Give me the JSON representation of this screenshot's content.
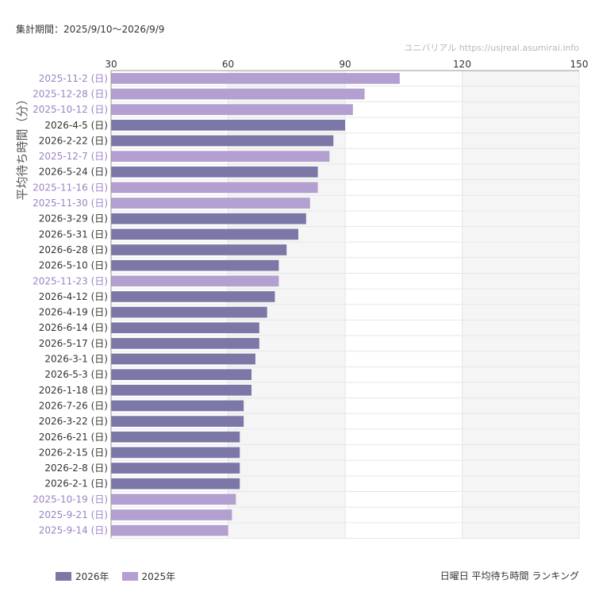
{
  "header": {
    "period": "集計期間：2025/9/10～2026/9/9",
    "watermark": "ユニバリアル  https://usjreal.asumirai.info"
  },
  "footer": {
    "caption": "日曜日 平均待ち時間 ランキング"
  },
  "colors": {
    "series_2026": "#7b77a6",
    "series_2025": "#b39fd0",
    "label_2026": "#333333",
    "label_2025": "#9b83c4",
    "band": "#f5f5f5",
    "grid": "#e6e6e6"
  },
  "chart_data": {
    "type": "bar",
    "orientation": "horizontal",
    "ylabel": "平均待ち時間（分）",
    "xlim": [
      30,
      150
    ],
    "xticks": [
      30,
      60,
      90,
      120,
      150
    ],
    "grid": true,
    "legend_position": "bottom-left",
    "series": [
      {
        "name": "2026年",
        "color": "#7b77a6"
      },
      {
        "name": "2025年",
        "color": "#b39fd0"
      }
    ],
    "bars": [
      {
        "label": "2025-11-2 (日)",
        "value": 104,
        "series": "2025年"
      },
      {
        "label": "2025-12-28 (日)",
        "value": 95,
        "series": "2025年"
      },
      {
        "label": "2025-10-12 (日)",
        "value": 92,
        "series": "2025年"
      },
      {
        "label": "2026-4-5 (日)",
        "value": 90,
        "series": "2026年"
      },
      {
        "label": "2026-2-22 (日)",
        "value": 87,
        "series": "2026年"
      },
      {
        "label": "2025-12-7 (日)",
        "value": 86,
        "series": "2025年"
      },
      {
        "label": "2026-5-24 (日)",
        "value": 83,
        "series": "2026年"
      },
      {
        "label": "2025-11-16 (日)",
        "value": 83,
        "series": "2025年"
      },
      {
        "label": "2025-11-30 (日)",
        "value": 81,
        "series": "2025年"
      },
      {
        "label": "2026-3-29 (日)",
        "value": 80,
        "series": "2026年"
      },
      {
        "label": "2026-5-31 (日)",
        "value": 78,
        "series": "2026年"
      },
      {
        "label": "2026-6-28 (日)",
        "value": 75,
        "series": "2026年"
      },
      {
        "label": "2026-5-10 (日)",
        "value": 73,
        "series": "2026年"
      },
      {
        "label": "2025-11-23 (日)",
        "value": 73,
        "series": "2025年"
      },
      {
        "label": "2026-4-12 (日)",
        "value": 72,
        "series": "2026年"
      },
      {
        "label": "2026-4-19 (日)",
        "value": 70,
        "series": "2026年"
      },
      {
        "label": "2026-6-14 (日)",
        "value": 68,
        "series": "2026年"
      },
      {
        "label": "2026-5-17 (日)",
        "value": 68,
        "series": "2026年"
      },
      {
        "label": "2026-3-1 (日)",
        "value": 67,
        "series": "2026年"
      },
      {
        "label": "2026-5-3 (日)",
        "value": 66,
        "series": "2026年"
      },
      {
        "label": "2026-1-18 (日)",
        "value": 66,
        "series": "2026年"
      },
      {
        "label": "2026-7-26 (日)",
        "value": 64,
        "series": "2026年"
      },
      {
        "label": "2026-3-22 (日)",
        "value": 64,
        "series": "2026年"
      },
      {
        "label": "2026-6-21 (日)",
        "value": 63,
        "series": "2026年"
      },
      {
        "label": "2026-2-15 (日)",
        "value": 63,
        "series": "2026年"
      },
      {
        "label": "2026-2-8 (日)",
        "value": 63,
        "series": "2026年"
      },
      {
        "label": "2026-2-1 (日)",
        "value": 63,
        "series": "2026年"
      },
      {
        "label": "2025-10-19 (日)",
        "value": 62,
        "series": "2025年"
      },
      {
        "label": "2025-9-21 (日)",
        "value": 61,
        "series": "2025年"
      },
      {
        "label": "2025-9-14 (日)",
        "value": 60,
        "series": "2025年"
      }
    ]
  }
}
